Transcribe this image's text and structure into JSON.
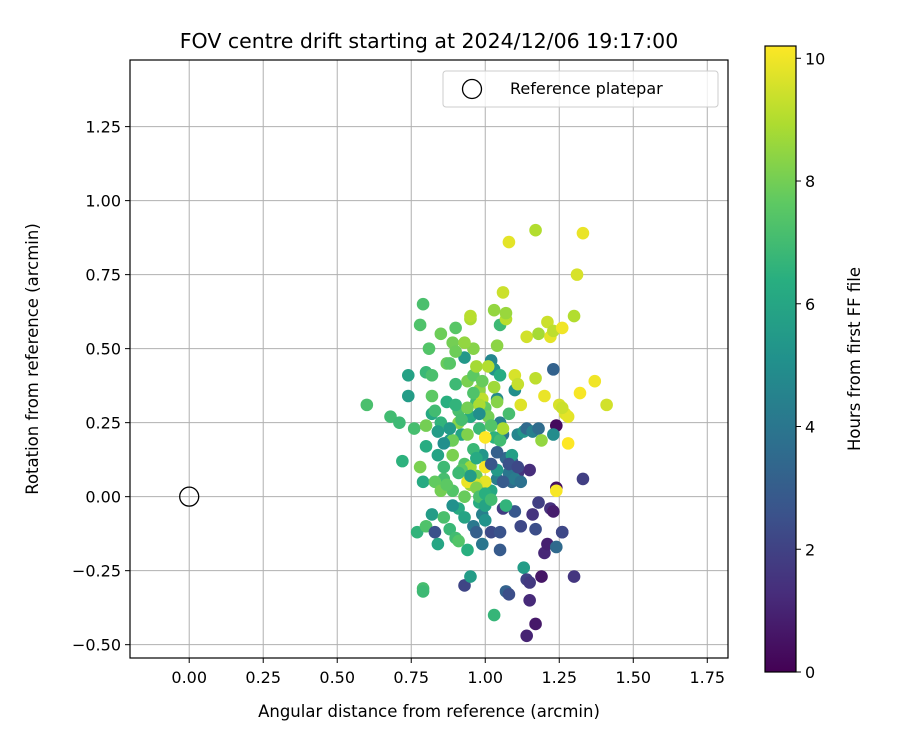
{
  "chart_data": {
    "type": "scatter",
    "title": "FOV centre drift starting at 2024/12/06 19:17:00",
    "xlabel": "Angular distance from reference (arcmin)",
    "ylabel": "Rotation from reference (arcmin)",
    "xlim": [
      -0.2,
      1.82
    ],
    "ylim": [
      -0.545,
      1.475
    ],
    "xticks": [
      0.0,
      0.25,
      0.5,
      0.75,
      1.0,
      1.25,
      1.5,
      1.75
    ],
    "xtick_labels": [
      "0.00",
      "0.25",
      "0.50",
      "0.75",
      "1.00",
      "1.25",
      "1.50",
      "1.75"
    ],
    "yticks": [
      -0.5,
      -0.25,
      0.0,
      0.25,
      0.5,
      0.75,
      1.0,
      1.25
    ],
    "ytick_labels": [
      "−0.50",
      "−0.25",
      "0.00",
      "0.25",
      "0.50",
      "0.75",
      "1.00",
      "1.25"
    ],
    "grid": true,
    "legend": {
      "position": "upper-right",
      "entries": [
        "Reference platepar"
      ]
    },
    "reference_point": {
      "x": 0.0,
      "y": 0.0,
      "marker": "hollow-circle"
    },
    "colorbar": {
      "label": "Hours from first FF file",
      "colormap": "viridis",
      "range": [
        0,
        10.2
      ],
      "ticks": [
        0,
        2,
        4,
        6,
        8,
        10
      ],
      "tick_labels": [
        "0",
        "2",
        "4",
        "6",
        "8",
        "10"
      ]
    },
    "points": [
      [
        0.6,
        0.31,
        7.2
      ],
      [
        0.68,
        0.27,
        7.0
      ],
      [
        0.71,
        0.25,
        6.9
      ],
      [
        0.72,
        0.12,
        6.5
      ],
      [
        0.74,
        0.41,
        5.8
      ],
      [
        0.74,
        0.34,
        5.6
      ],
      [
        0.76,
        0.23,
        7.1
      ],
      [
        0.77,
        -0.12,
        6.6
      ],
      [
        0.78,
        0.58,
        7.3
      ],
      [
        0.79,
        0.65,
        7.2
      ],
      [
        0.79,
        0.05,
        6.2
      ],
      [
        0.8,
        0.42,
        6.8
      ],
      [
        0.8,
        0.17,
        6.3
      ],
      [
        0.81,
        0.5,
        7.4
      ],
      [
        0.82,
        0.34,
        7.6
      ],
      [
        0.82,
        0.28,
        6.1
      ],
      [
        0.83,
        0.29,
        7.0
      ],
      [
        0.84,
        0.14,
        5.9
      ],
      [
        0.85,
        0.25,
        6.6
      ],
      [
        0.86,
        0.06,
        7.1
      ],
      [
        0.87,
        0.45,
        7.8
      ],
      [
        0.87,
        0.32,
        6.4
      ],
      [
        0.88,
        0.19,
        5.7
      ],
      [
        0.89,
        0.52,
        8.0
      ],
      [
        0.9,
        0.57,
        7.5
      ],
      [
        0.9,
        0.38,
        6.9
      ],
      [
        0.91,
        0.29,
        7.2
      ],
      [
        0.92,
        0.21,
        6.0
      ],
      [
        0.93,
        0.47,
        5.4
      ],
      [
        0.93,
        0.11,
        7.3
      ],
      [
        0.94,
        0.39,
        8.1
      ],
      [
        0.95,
        0.27,
        6.2
      ],
      [
        0.96,
        0.5,
        8.3
      ],
      [
        0.97,
        0.32,
        7.0
      ],
      [
        0.98,
        0.23,
        6.8
      ],
      [
        0.99,
        0.14,
        5.3
      ],
      [
        0.84,
        0.22,
        5.6
      ],
      [
        0.86,
        0.1,
        6.9
      ],
      [
        0.89,
        0.02,
        7.4
      ],
      [
        0.91,
        -0.04,
        6.2
      ],
      [
        0.93,
        -0.07,
        5.9
      ],
      [
        0.95,
        0.04,
        8.6
      ],
      [
        0.96,
        -0.1,
        4.1
      ],
      [
        0.97,
        0.07,
        7.9
      ],
      [
        0.98,
        -0.02,
        6.3
      ],
      [
        0.99,
        -0.06,
        4.4
      ],
      [
        0.79,
        -0.31,
        7.1
      ],
      [
        0.79,
        -0.32,
        6.9
      ],
      [
        0.8,
        -0.1,
        7.3
      ],
      [
        0.82,
        -0.06,
        5.6
      ],
      [
        0.83,
        -0.12,
        2.5
      ],
      [
        0.84,
        -0.16,
        6.0
      ],
      [
        0.86,
        -0.07,
        7.2
      ],
      [
        0.88,
        -0.11,
        6.8
      ],
      [
        0.89,
        -0.03,
        5.1
      ],
      [
        0.9,
        -0.14,
        7.0
      ],
      [
        0.91,
        -0.15,
        7.4
      ],
      [
        0.93,
        -0.3,
        2.1
      ],
      [
        0.94,
        -0.18,
        6.4
      ],
      [
        0.95,
        -0.27,
        5.6
      ],
      [
        0.97,
        -0.12,
        3.1
      ],
      [
        0.99,
        -0.16,
        4.0
      ],
      [
        1.0,
        -0.08,
        5.2
      ],
      [
        1.01,
        -0.01,
        3.7
      ],
      [
        1.02,
        -0.12,
        2.3
      ],
      [
        1.03,
        -0.4,
        6.7
      ],
      [
        1.04,
        0.06,
        4.3
      ],
      [
        1.05,
        -0.12,
        2.6
      ],
      [
        1.05,
        -0.18,
        2.9
      ],
      [
        1.06,
        -0.04,
        1.8
      ],
      [
        1.07,
        -0.32,
        3.2
      ],
      [
        1.08,
        -0.33,
        2.4
      ],
      [
        1.09,
        0.05,
        3.6
      ],
      [
        1.1,
        -0.05,
        2.8
      ],
      [
        1.11,
        0.08,
        1.6
      ],
      [
        1.12,
        -0.1,
        2.2
      ],
      [
        1.13,
        -0.24,
        5.6
      ],
      [
        1.14,
        -0.28,
        2.0
      ],
      [
        1.15,
        -0.29,
        1.7
      ],
      [
        1.15,
        -0.35,
        1.2
      ],
      [
        1.14,
        -0.47,
        1.0
      ],
      [
        1.16,
        -0.06,
        1.5
      ],
      [
        1.17,
        -0.11,
        2.4
      ],
      [
        1.17,
        -0.43,
        0.7
      ],
      [
        1.18,
        -0.02,
        1.9
      ],
      [
        1.19,
        -0.27,
        0.6
      ],
      [
        1.2,
        -0.19,
        1.1
      ],
      [
        1.21,
        -0.16,
        0.9
      ],
      [
        1.22,
        -0.04,
        1.4
      ],
      [
        1.23,
        -0.05,
        0.8
      ],
      [
        1.24,
        -0.17,
        3.5
      ],
      [
        1.26,
        -0.12,
        0.5
      ],
      [
        1.26,
        -0.12,
        2.2
      ],
      [
        1.3,
        -0.27,
        1.6
      ],
      [
        1.33,
        0.06,
        1.9
      ],
      [
        1.24,
        0.03,
        0.4
      ],
      [
        1.24,
        0.24,
        0.3
      ],
      [
        1.0,
        0.02,
        0.5
      ],
      [
        1.02,
        0.46,
        4.7
      ],
      [
        1.03,
        0.43,
        5.2
      ],
      [
        1.04,
        0.33,
        4.8
      ],
      [
        1.05,
        0.25,
        4.5
      ],
      [
        1.06,
        0.21,
        3.9
      ],
      [
        1.07,
        0.13,
        3.4
      ],
      [
        1.08,
        0.08,
        4.0
      ],
      [
        1.09,
        0.12,
        3.0
      ],
      [
        1.1,
        0.06,
        4.2
      ],
      [
        1.1,
        0.36,
        5.0
      ],
      [
        1.11,
        0.21,
        4.6
      ],
      [
        1.12,
        0.05,
        3.8
      ],
      [
        1.13,
        0.22,
        5.3
      ],
      [
        1.14,
        0.23,
        3.5
      ],
      [
        1.15,
        0.09,
        1.3
      ],
      [
        1.16,
        0.22,
        4.4
      ],
      [
        1.18,
        0.23,
        3.6
      ],
      [
        1.23,
        0.43,
        3.2
      ],
      [
        1.23,
        0.21,
        4.9
      ],
      [
        1.01,
        0.11,
        5.8
      ],
      [
        1.02,
        0.02,
        6.1
      ],
      [
        1.03,
        0.2,
        6.5
      ],
      [
        1.04,
        0.09,
        5.5
      ],
      [
        1.05,
        0.19,
        7.0
      ],
      [
        1.06,
        0.23,
        8.9
      ],
      [
        1.07,
        -0.03,
        6.6
      ],
      [
        1.08,
        0.28,
        7.1
      ],
      [
        1.09,
        0.14,
        5.7
      ],
      [
        0.96,
        0.41,
        7.6
      ],
      [
        0.97,
        0.44,
        8.8
      ],
      [
        0.98,
        0.36,
        8.4
      ],
      [
        0.99,
        0.33,
        9.2
      ],
      [
        1.0,
        0.3,
        7.7
      ],
      [
        1.01,
        0.27,
        8.0
      ],
      [
        1.02,
        0.24,
        7.4
      ],
      [
        1.03,
        0.37,
        8.7
      ],
      [
        1.04,
        0.32,
        8.3
      ],
      [
        1.05,
        0.58,
        6.9
      ],
      [
        1.06,
        0.69,
        9.4
      ],
      [
        1.07,
        0.6,
        9.1
      ],
      [
        1.07,
        0.62,
        8.6
      ],
      [
        1.08,
        0.86,
        9.8
      ],
      [
        1.1,
        0.41,
        9.6
      ],
      [
        1.11,
        0.38,
        9.3
      ],
      [
        1.12,
        0.31,
        9.7
      ],
      [
        1.14,
        0.54,
        9.5
      ],
      [
        1.17,
        0.9,
        9.0
      ],
      [
        1.17,
        0.4,
        9.2
      ],
      [
        1.18,
        0.55,
        8.8
      ],
      [
        1.19,
        0.19,
        8.5
      ],
      [
        1.2,
        0.34,
        9.9
      ],
      [
        1.21,
        0.59,
        9.4
      ],
      [
        1.22,
        0.54,
        9.8
      ],
      [
        1.23,
        0.56,
        9.2
      ],
      [
        1.24,
        0.02,
        10.1
      ],
      [
        1.25,
        0.31,
        9.6
      ],
      [
        1.26,
        0.57,
        10.0
      ],
      [
        1.27,
        0.28,
        9.7
      ],
      [
        1.28,
        0.18,
        10.2
      ],
      [
        1.3,
        0.61,
        9.0
      ],
      [
        1.31,
        0.75,
        9.6
      ],
      [
        1.32,
        0.35,
        10.1
      ],
      [
        1.33,
        0.89,
        9.9
      ],
      [
        1.37,
        0.39,
        10.0
      ],
      [
        1.41,
        0.31,
        9.5
      ],
      [
        1.28,
        0.27,
        9.8
      ],
      [
        1.26,
        0.3,
        9.4
      ],
      [
        1.0,
        0.2,
        10.2
      ],
      [
        1.0,
        0.1,
        10.1
      ],
      [
        1.0,
        0.05,
        9.8
      ],
      [
        0.97,
        0.04,
        9.6
      ],
      [
        0.94,
        0.05,
        9.9
      ],
      [
        0.95,
        0.1,
        8.7
      ],
      [
        0.97,
        0.03,
        8.2
      ],
      [
        0.98,
        0.31,
        8.9
      ],
      [
        0.99,
        0.39,
        7.8
      ],
      [
        1.01,
        0.44,
        9.0
      ],
      [
        1.03,
        0.63,
        8.5
      ],
      [
        1.05,
        0.41,
        6.3
      ],
      [
        1.04,
        0.51,
        8.4
      ],
      [
        0.95,
        0.6,
        8.9
      ],
      [
        0.95,
        0.61,
        9.1
      ],
      [
        0.93,
        0.52,
        8.5
      ],
      [
        0.9,
        0.49,
        7.9
      ],
      [
        0.88,
        0.45,
        7.5
      ],
      [
        0.85,
        0.55,
        7.9
      ],
      [
        0.82,
        0.41,
        7.2
      ],
      [
        0.8,
        0.24,
        8.0
      ],
      [
        0.78,
        0.1,
        8.1
      ],
      [
        0.83,
        0.05,
        7.7
      ],
      [
        0.85,
        0.02,
        8.0
      ],
      [
        0.87,
        0.04,
        7.6
      ],
      [
        0.89,
        0.19,
        7.9
      ],
      [
        0.91,
        0.25,
        8.3
      ],
      [
        0.92,
        0.09,
        7.5
      ],
      [
        0.94,
        0.21,
        8.2
      ],
      [
        0.96,
        0.16,
        6.8
      ],
      [
        0.98,
        0.0,
        7.2
      ],
      [
        1.0,
        -0.03,
        5.9
      ],
      [
        0.88,
        0.23,
        5.5
      ],
      [
        0.86,
        0.18,
        5.0
      ],
      [
        0.9,
        0.31,
        6.6
      ],
      [
        0.92,
        0.26,
        7.1
      ],
      [
        0.94,
        0.3,
        8.0
      ],
      [
        0.96,
        0.35,
        7.3
      ],
      [
        0.98,
        0.28,
        5.0
      ],
      [
        1.0,
        0.01,
        6.4
      ],
      [
        1.02,
        -0.01,
        7.0
      ],
      [
        0.97,
        0.13,
        6.2
      ],
      [
        0.95,
        0.07,
        5.6
      ],
      [
        0.93,
        0.0,
        7.8
      ],
      [
        0.91,
        0.08,
        6.9
      ],
      [
        0.89,
        0.14,
        8.1
      ],
      [
        1.02,
        0.11,
        2.7
      ],
      [
        1.04,
        0.15,
        3.1
      ],
      [
        1.08,
        0.11,
        2.5
      ],
      [
        1.11,
        0.1,
        2.2
      ],
      [
        1.06,
        0.05,
        2.9
      ]
    ]
  }
}
